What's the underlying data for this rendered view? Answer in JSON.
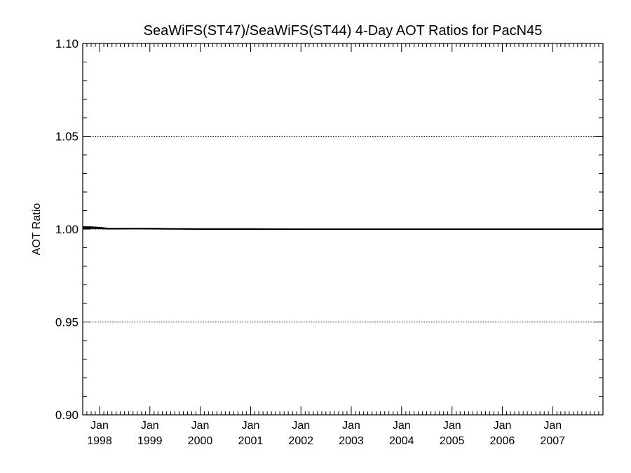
{
  "chart_data": {
    "type": "line",
    "title": "SeaWiFS(ST47)/SeaWiFS(ST44) 4-Day AOT Ratios for PacN45",
    "ylabel": "AOT Ratio",
    "xlabel": "",
    "ylim": [
      0.9,
      1.1
    ],
    "xlim": [
      "1997-09-01",
      "2008-01-01"
    ],
    "y_ticks": [
      "0.90",
      "0.95",
      "1.00",
      "1.05",
      "1.10"
    ],
    "y_grid": [
      0.95,
      1.0,
      1.05
    ],
    "y_minor_step": 0.01,
    "x_ticks": [
      {
        "month": "Jan",
        "year": "1998",
        "date": "1998-01-01"
      },
      {
        "month": "Jan",
        "year": "1999",
        "date": "1999-01-01"
      },
      {
        "month": "Jan",
        "year": "2000",
        "date": "2000-01-01"
      },
      {
        "month": "Jan",
        "year": "2001",
        "date": "2001-01-01"
      },
      {
        "month": "Jan",
        "year": "2002",
        "date": "2002-01-01"
      },
      {
        "month": "Jan",
        "year": "2003",
        "date": "2003-01-01"
      },
      {
        "month": "Jan",
        "year": "2004",
        "date": "2004-01-01"
      },
      {
        "month": "Jan",
        "year": "2005",
        "date": "2005-01-01"
      },
      {
        "month": "Jan",
        "year": "2006",
        "date": "2006-01-01"
      },
      {
        "month": "Jan",
        "year": "2007",
        "date": "2007-01-01"
      }
    ],
    "grid": "dotted horizontal at 0.95, 1.00, 1.05",
    "line_color": "#000000",
    "series": [
      {
        "x": [
          "1997-09-01",
          "1997-11-01",
          "1998-01-01",
          "1998-03-01",
          "1998-06-01",
          "1998-09-01",
          "1999-01-01",
          "1999-06-01",
          "2000-01-01",
          "2001-01-01",
          "2002-01-01",
          "2003-01-01",
          "2004-01-01",
          "2005-01-01",
          "2006-01-01",
          "2007-01-01",
          "2008-01-01"
        ],
        "y": [
          1.0012,
          1.0011,
          1.0008,
          1.0004,
          1.0003,
          1.0004,
          1.0004,
          1.0002,
          1.0001,
          1.0001,
          1.0,
          1.0,
          1.0,
          1.0,
          1.0,
          1.0,
          1.0
        ]
      },
      {
        "x": [
          "1997-09-01",
          "1997-11-01",
          "1998-01-01",
          "1998-03-01",
          "1998-06-01",
          "1998-09-01",
          "1999-01-01",
          "1999-06-01",
          "2000-01-01",
          "2001-01-01",
          "2002-01-01",
          "2003-01-01",
          "2004-01-01",
          "2005-01-01",
          "2006-01-01",
          "2007-01-01",
          "2008-01-01"
        ],
        "y": [
          1.0006,
          1.0005,
          1.0004,
          1.0002,
          1.0002,
          1.0003,
          1.0002,
          1.0001,
          1.0,
          1.0,
          1.0,
          1.0,
          1.0,
          1.0,
          1.0,
          1.0,
          1.0
        ]
      }
    ]
  }
}
